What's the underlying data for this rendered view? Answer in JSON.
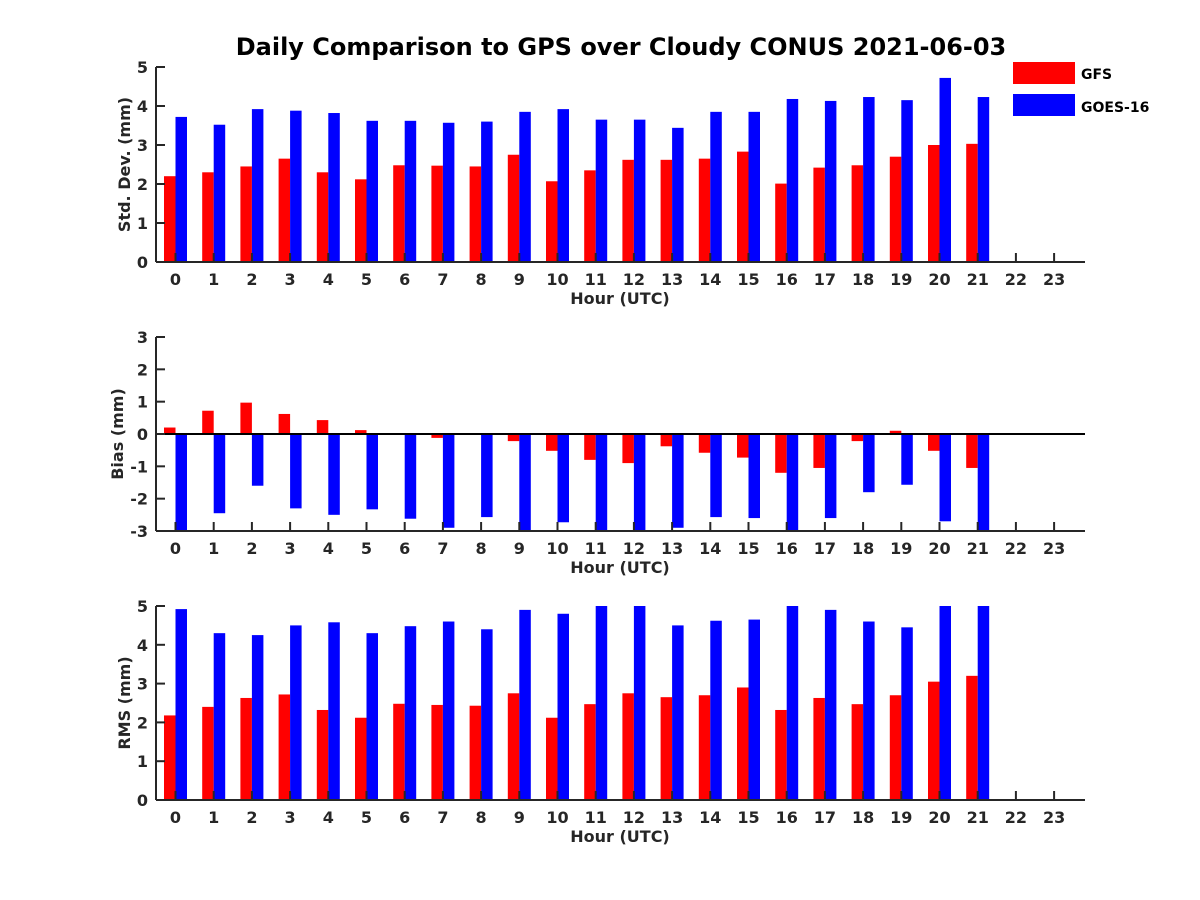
{
  "title": "Daily Comparison to GPS over Cloudy CONUS 2021-06-03",
  "legend": {
    "placement": "top-right",
    "entries": [
      {
        "name": "GFS",
        "color": "#ff0000"
      },
      {
        "name": "GOES-16",
        "color": "#0000ff"
      }
    ]
  },
  "chart_data": [
    {
      "type": "bar",
      "xlabel": "Hour (UTC)",
      "ylabel": "Std. Dev. (mm)",
      "categories": [
        "0",
        "1",
        "2",
        "3",
        "4",
        "5",
        "6",
        "7",
        "8",
        "9",
        "10",
        "11",
        "12",
        "13",
        "14",
        "15",
        "16",
        "17",
        "18",
        "19",
        "20",
        "21",
        "22",
        "23"
      ],
      "yticks": [
        "0",
        "1",
        "2",
        "3",
        "4",
        "5"
      ],
      "ylim": [
        0,
        5
      ],
      "series": [
        {
          "name": "GFS",
          "color": "#ff0000",
          "values": [
            2.2,
            2.3,
            2.45,
            2.65,
            2.3,
            2.12,
            2.48,
            2.47,
            2.45,
            2.75,
            2.07,
            2.35,
            2.62,
            2.62,
            2.65,
            2.83,
            2.01,
            2.42,
            2.48,
            2.7,
            3.0,
            3.03,
            null,
            null
          ]
        },
        {
          "name": "GOES-16",
          "color": "#0000ff",
          "values": [
            3.72,
            3.52,
            3.92,
            3.88,
            3.82,
            3.62,
            3.62,
            3.57,
            3.6,
            3.85,
            3.92,
            3.65,
            3.65,
            3.44,
            3.85,
            3.85,
            4.18,
            4.13,
            4.23,
            4.15,
            4.72,
            4.23,
            null,
            null
          ]
        }
      ]
    },
    {
      "type": "bar",
      "xlabel": "Hour (UTC)",
      "ylabel": "Bias (mm)",
      "categories": [
        "0",
        "1",
        "2",
        "3",
        "4",
        "5",
        "6",
        "7",
        "8",
        "9",
        "10",
        "11",
        "12",
        "13",
        "14",
        "15",
        "16",
        "17",
        "18",
        "19",
        "20",
        "21",
        "22",
        "23"
      ],
      "yticks": [
        "-3",
        "-2",
        "-1",
        "0",
        "1",
        "2",
        "3"
      ],
      "ylim": [
        -3,
        3
      ],
      "zero_line": true,
      "series": [
        {
          "name": "GFS",
          "color": "#ff0000",
          "values": [
            0.2,
            0.72,
            0.97,
            0.62,
            0.43,
            0.12,
            0.0,
            -0.12,
            0.02,
            -0.22,
            -0.52,
            -0.8,
            -0.9,
            -0.38,
            -0.58,
            -0.73,
            -1.2,
            -1.05,
            -0.22,
            0.1,
            -0.52,
            -1.05,
            null,
            null
          ]
        },
        {
          "name": "GOES-16",
          "color": "#0000ff",
          "values": [
            -3.0,
            -2.45,
            -1.6,
            -2.3,
            -2.5,
            -2.33,
            -2.62,
            -2.9,
            -2.57,
            -3.0,
            -2.73,
            -3.0,
            -3.0,
            -2.9,
            -2.57,
            -2.6,
            -3.0,
            -2.6,
            -1.8,
            -1.57,
            -2.7,
            -3.0,
            null,
            null
          ]
        }
      ]
    },
    {
      "type": "bar",
      "xlabel": "Hour (UTC)",
      "ylabel": "RMS (mm)",
      "categories": [
        "0",
        "1",
        "2",
        "3",
        "4",
        "5",
        "6",
        "7",
        "8",
        "9",
        "10",
        "11",
        "12",
        "13",
        "14",
        "15",
        "16",
        "17",
        "18",
        "19",
        "20",
        "21",
        "22",
        "23"
      ],
      "yticks": [
        "0",
        "1",
        "2",
        "3",
        "4",
        "5"
      ],
      "ylim": [
        0,
        5
      ],
      "series": [
        {
          "name": "GFS",
          "color": "#ff0000",
          "values": [
            2.18,
            2.4,
            2.63,
            2.72,
            2.32,
            2.12,
            2.48,
            2.45,
            2.43,
            2.75,
            2.12,
            2.47,
            2.75,
            2.65,
            2.7,
            2.9,
            2.32,
            2.63,
            2.47,
            2.7,
            3.05,
            3.2,
            null,
            null
          ]
        },
        {
          "name": "GOES-16",
          "color": "#0000ff",
          "values": [
            4.92,
            4.3,
            4.25,
            4.5,
            4.58,
            4.3,
            4.48,
            4.6,
            4.4,
            4.9,
            4.8,
            5.0,
            5.0,
            4.5,
            4.62,
            4.65,
            5.0,
            4.9,
            4.6,
            4.45,
            5.0,
            5.0,
            null,
            null
          ]
        }
      ]
    }
  ]
}
